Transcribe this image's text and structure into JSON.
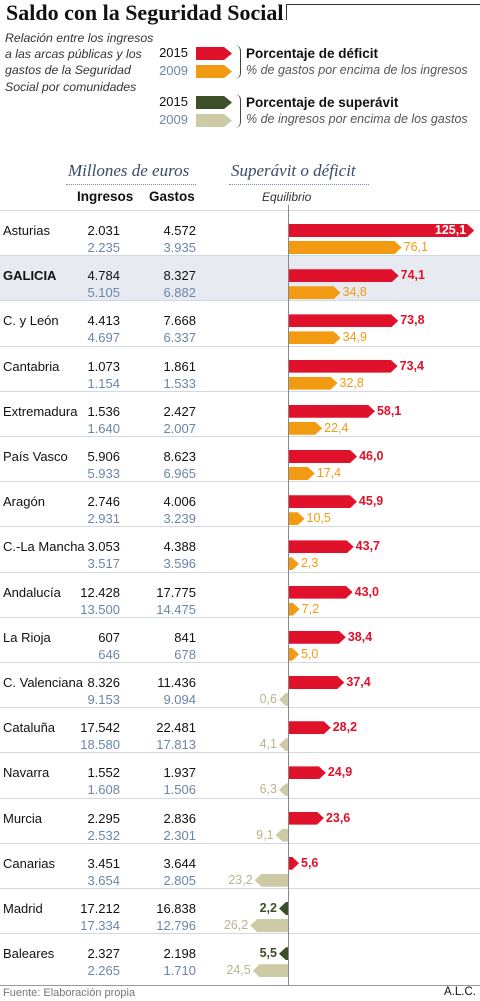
{
  "header": {
    "title": "Saldo con la Seguridad Social",
    "intro": "Relación entre los ingresos a las arcas públicas y los gastos de la Seguridad Social por comunidades"
  },
  "legend": {
    "deficit": {
      "year_current": "2015",
      "year_previous": "2009",
      "heading": "Porcentaje de déficit",
      "subheading": "% de gastos por encima de los ingresos"
    },
    "surplus": {
      "year_current": "2015",
      "year_previous": "2009",
      "heading": "Porcentaje de superávit",
      "subheading": "% de ingresos por encima de los gastos"
    }
  },
  "colors": {
    "deficit_2015": "#e0112b",
    "deficit_2009": "#f29b12",
    "surplus_2015": "#3d4f26",
    "surplus_2009": "#cdcaa6",
    "previous_year_text": "#6c86a8"
  },
  "table": {
    "section_left": "Millones de euros",
    "section_right": "Superávit o déficit",
    "col_income": "Ingresos",
    "col_expense": "Gastos",
    "axis_label": "Equilibrio"
  },
  "chart_data": {
    "type": "bar",
    "orientation": "horizontal-diverging",
    "title": "Saldo con la Seguridad Social",
    "baseline_label": "Equilibrio",
    "unit": "%",
    "series": [
      {
        "name": "Porcentaje de déficit 2015"
      },
      {
        "name": "% de gastos por encima de los ingresos 2009"
      },
      {
        "name": "Porcentaje de superávit 2015"
      },
      {
        "name": "% de ingresos por encima de los gastos 2009"
      }
    ],
    "rows": [
      {
        "region": "Asturias",
        "highlight": false,
        "ingresos_2015": "2.031",
        "gastos_2015": "4.572",
        "ingresos_2009": "2.235",
        "gastos_2009": "3.935",
        "v2015": 125.1,
        "t2015": "deficit",
        "l2015": "125,1",
        "v2009": 76.1,
        "t2009": "deficit",
        "l2009": "76,1"
      },
      {
        "region": "GALICIA",
        "highlight": true,
        "ingresos_2015": "4.784",
        "gastos_2015": "8.327",
        "ingresos_2009": "5.105",
        "gastos_2009": "6.882",
        "v2015": 74.1,
        "t2015": "deficit",
        "l2015": "74,1",
        "v2009": 34.8,
        "t2009": "deficit",
        "l2009": "34,8"
      },
      {
        "region": "C. y León",
        "highlight": false,
        "ingresos_2015": "4.413",
        "gastos_2015": "7.668",
        "ingresos_2009": "4.697",
        "gastos_2009": "6.337",
        "v2015": 73.8,
        "t2015": "deficit",
        "l2015": "73,8",
        "v2009": 34.9,
        "t2009": "deficit",
        "l2009": "34,9"
      },
      {
        "region": "Cantabria",
        "highlight": false,
        "ingresos_2015": "1.073",
        "gastos_2015": "1.861",
        "ingresos_2009": "1.154",
        "gastos_2009": "1.533",
        "v2015": 73.4,
        "t2015": "deficit",
        "l2015": "73,4",
        "v2009": 32.8,
        "t2009": "deficit",
        "l2009": "32,8"
      },
      {
        "region": "Extremadura",
        "highlight": false,
        "ingresos_2015": "1.536",
        "gastos_2015": "2.427",
        "ingresos_2009": "1.640",
        "gastos_2009": "2.007",
        "v2015": 58.1,
        "t2015": "deficit",
        "l2015": "58,1",
        "v2009": 22.4,
        "t2009": "deficit",
        "l2009": "22,4"
      },
      {
        "region": "País Vasco",
        "highlight": false,
        "ingresos_2015": "5.906",
        "gastos_2015": "8.623",
        "ingresos_2009": "5.933",
        "gastos_2009": "6.965",
        "v2015": 46.0,
        "t2015": "deficit",
        "l2015": "46,0",
        "v2009": 17.4,
        "t2009": "deficit",
        "l2009": "17,4"
      },
      {
        "region": "Aragón",
        "highlight": false,
        "ingresos_2015": "2.746",
        "gastos_2015": "4.006",
        "ingresos_2009": "2.931",
        "gastos_2009": "3.239",
        "v2015": 45.9,
        "t2015": "deficit",
        "l2015": "45,9",
        "v2009": 10.5,
        "t2009": "deficit",
        "l2009": "10,5"
      },
      {
        "region": "C.-La Mancha",
        "highlight": false,
        "ingresos_2015": "3.053",
        "gastos_2015": "4.388",
        "ingresos_2009": "3.517",
        "gastos_2009": "3.596",
        "v2015": 43.7,
        "t2015": "deficit",
        "l2015": "43,7",
        "v2009": 2.3,
        "t2009": "deficit",
        "l2009": "2,3"
      },
      {
        "region": "Andalucía",
        "highlight": false,
        "ingresos_2015": "12.428",
        "gastos_2015": "17.775",
        "ingresos_2009": "13.500",
        "gastos_2009": "14.475",
        "v2015": 43.0,
        "t2015": "deficit",
        "l2015": "43,0",
        "v2009": 7.2,
        "t2009": "deficit",
        "l2009": "7,2"
      },
      {
        "region": "La Rioja",
        "highlight": false,
        "ingresos_2015": "607",
        "gastos_2015": "841",
        "ingresos_2009": "646",
        "gastos_2009": "678",
        "v2015": 38.4,
        "t2015": "deficit",
        "l2015": "38,4",
        "v2009": 5.0,
        "t2009": "deficit",
        "l2009": "5,0"
      },
      {
        "region": "C. Valenciana",
        "highlight": false,
        "ingresos_2015": "8.326",
        "gastos_2015": "11.436",
        "ingresos_2009": "9.153",
        "gastos_2009": "9.094",
        "v2015": 37.4,
        "t2015": "deficit",
        "l2015": "37,4",
        "v2009": 0.6,
        "t2009": "surplus",
        "l2009": "0,6"
      },
      {
        "region": "Cataluña",
        "highlight": false,
        "ingresos_2015": "17.542",
        "gastos_2015": "22.481",
        "ingresos_2009": "18.580",
        "gastos_2009": "17.813",
        "v2015": 28.2,
        "t2015": "deficit",
        "l2015": "28,2",
        "v2009": 4.1,
        "t2009": "surplus",
        "l2009": "4,1"
      },
      {
        "region": "Navarra",
        "highlight": false,
        "ingresos_2015": "1.552",
        "gastos_2015": "1.937",
        "ingresos_2009": "1.608",
        "gastos_2009": "1.506",
        "v2015": 24.9,
        "t2015": "deficit",
        "l2015": "24,9",
        "v2009": 6.3,
        "t2009": "surplus",
        "l2009": "6,3"
      },
      {
        "region": "Murcia",
        "highlight": false,
        "ingresos_2015": "2.295",
        "gastos_2015": "2.836",
        "ingresos_2009": "2.532",
        "gastos_2009": "2.301",
        "v2015": 23.6,
        "t2015": "deficit",
        "l2015": "23,6",
        "v2009": 9.1,
        "t2009": "surplus",
        "l2009": "9,1"
      },
      {
        "region": "Canarias",
        "highlight": false,
        "ingresos_2015": "3.451",
        "gastos_2015": "3.644",
        "ingresos_2009": "3.654",
        "gastos_2009": "2.805",
        "v2015": 5.6,
        "t2015": "deficit",
        "l2015": "5,6",
        "v2009": 23.2,
        "t2009": "surplus",
        "l2009": "23,2"
      },
      {
        "region": "Madrid",
        "highlight": false,
        "ingresos_2015": "17.212",
        "gastos_2015": "16.838",
        "ingresos_2009": "17.334",
        "gastos_2009": "12.796",
        "v2015": 2.2,
        "t2015": "surplus",
        "l2015": "2,2",
        "v2009": 26.2,
        "t2009": "surplus",
        "l2009": "26,2"
      },
      {
        "region": "Baleares",
        "highlight": false,
        "ingresos_2015": "2.327",
        "gastos_2015": "2.198",
        "ingresos_2009": "2.265",
        "gastos_2009": "1.710",
        "v2015": 5.5,
        "t2015": "surplus",
        "l2015": "5,5",
        "v2009": 24.5,
        "t2009": "surplus",
        "l2009": "24,5"
      }
    ]
  },
  "footer": {
    "source": "Fuente: Elaboración propia",
    "credit": "A.L.C."
  }
}
